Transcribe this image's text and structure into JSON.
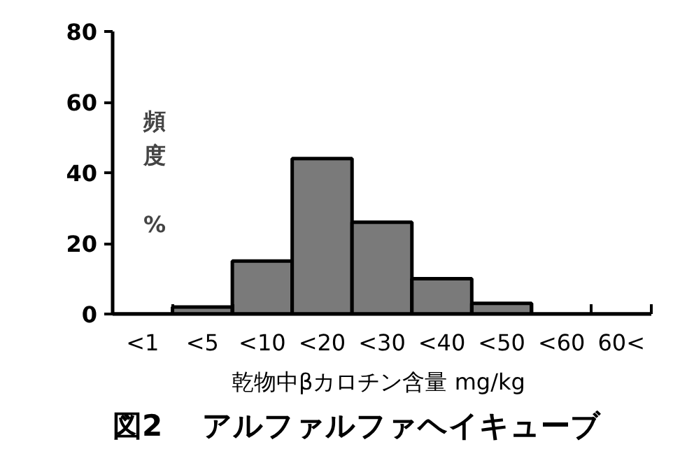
{
  "chart_data": {
    "type": "bar",
    "title": "図2　 アルファルファヘイキューブ",
    "xlabel": "乾物中βカロチン含量  mg/kg",
    "ylabel": "頻度 %",
    "categories": [
      "<1",
      "<5",
      "<10",
      "<20",
      "<30",
      "<40",
      "<50",
      "<60",
      "60<"
    ],
    "values": [
      0,
      2,
      15,
      44,
      26,
      10,
      3,
      0,
      0
    ],
    "color": "#7a7a7a",
    "ylim": [
      0,
      80
    ],
    "yticks": [
      0,
      20,
      40,
      60,
      80
    ],
    "grid": false
  }
}
